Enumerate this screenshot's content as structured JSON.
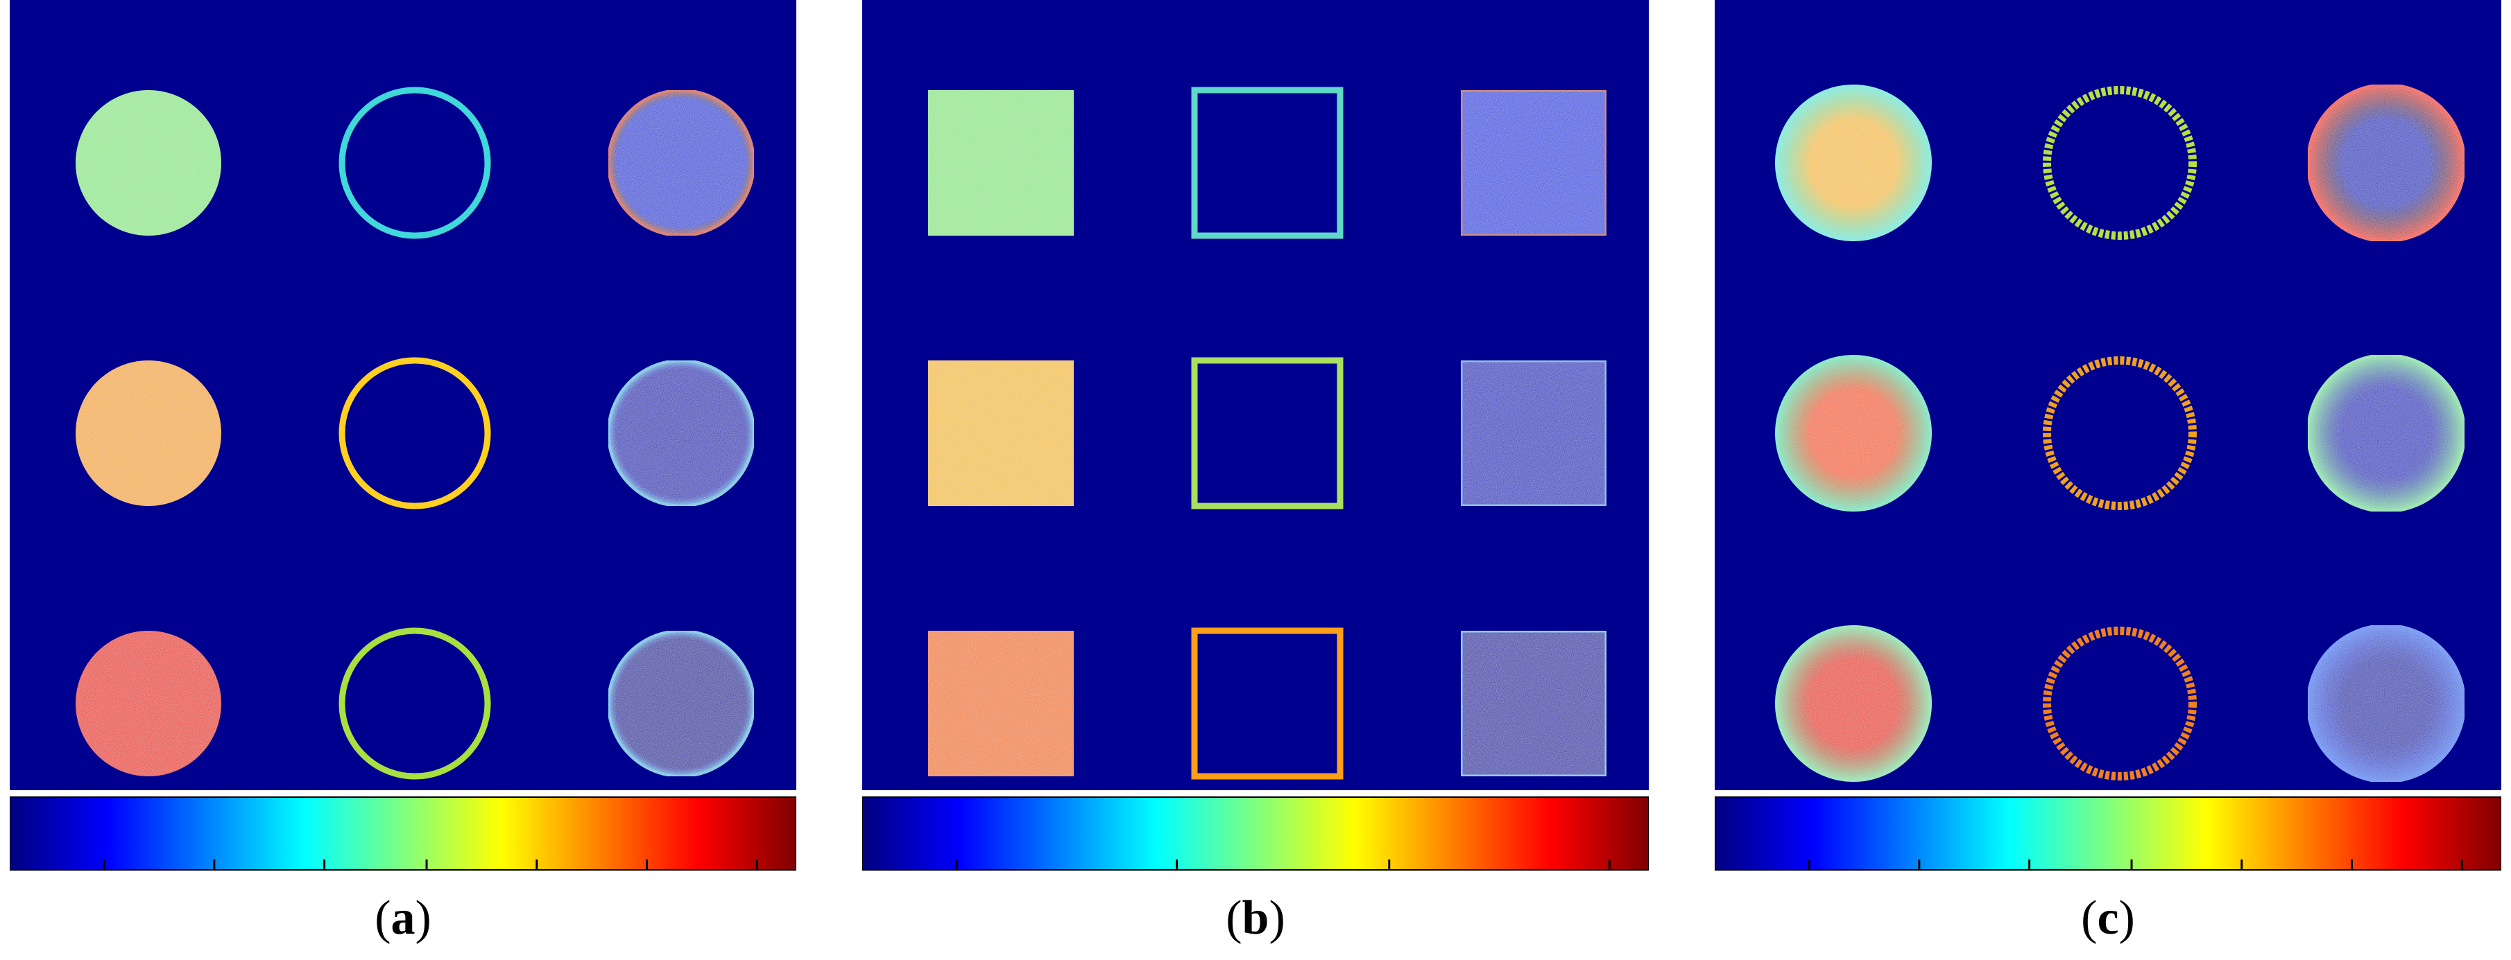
{
  "colors": {
    "background": "#00008f",
    "colormap": [
      "#00007f",
      "#0000ff",
      "#007fff",
      "#00ffff",
      "#7fff7f",
      "#ffff00",
      "#ff7f00",
      "#ff0000",
      "#7f0000"
    ]
  },
  "panels": [
    {
      "id": "a",
      "caption_letter": "a",
      "shape": "circle",
      "rows": [
        {
          "fill": "#8ee68a",
          "ring": "#40d8d8",
          "inner": "#1a3cd8",
          "inner_edge": "#d05030"
        },
        {
          "fill": "#f2aa30",
          "ring": "#ffd020",
          "inner": "#0a18b8",
          "inner_edge": "#60c0e0"
        },
        {
          "fill": "#e82a10",
          "ring": "#a8e040",
          "inner": "#0810a0",
          "inner_edge": "#60c0e0"
        }
      ]
    },
    {
      "id": "b",
      "caption_letter": "b",
      "shape": "square",
      "rows": [
        {
          "fill": "#8ee688",
          "ring": "#60d8c8",
          "inner": "#1a40e0",
          "inner_edge": "#c06040"
        },
        {
          "fill": "#f2c030",
          "ring": "#a8e060",
          "inner": "#0a1cc0",
          "inner_edge": "#60b0e0"
        },
        {
          "fill": "#f07a18",
          "ring": "#ff9e18",
          "inner": "#0810a8",
          "inner_edge": "#70c0e0"
        }
      ]
    },
    {
      "id": "c",
      "caption_letter": "c",
      "shape": "fuzzy-circle",
      "rows": [
        {
          "fill": "#f4c040",
          "fill_edge": "#60e8e0",
          "ring": "#b8e040",
          "inner": "#0a20c0",
          "inner_edge": "#f03010"
        },
        {
          "fill": "#f26020",
          "fill_edge": "#60e8c0",
          "ring": "#f0a020",
          "inner": "#0a20c0",
          "inner_edge": "#80e0a0"
        },
        {
          "fill": "#e83010",
          "fill_edge": "#80e8b0",
          "ring": "#f08020",
          "inner": "#0a1cb0",
          "inner_edge": "#4080f0"
        }
      ]
    }
  ]
}
